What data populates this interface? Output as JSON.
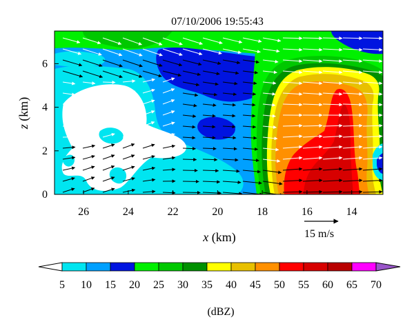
{
  "chart_data": {
    "type": "heatmap",
    "title": "07/10/2006 19:55:43",
    "xlabel_var": "x",
    "xlabel_unit": " (km)",
    "ylabel_var": "z",
    "ylabel_unit": " (km)",
    "x_range": [
      27.3,
      12.6
    ],
    "y_range": [
      0,
      7.5
    ],
    "x_ticks": [
      26,
      24,
      22,
      20,
      18,
      16,
      14
    ],
    "y_ticks": [
      0,
      2,
      4,
      6
    ],
    "reference_vector_label": "15 m/s",
    "reference_vector_ms": 15,
    "colorbar": {
      "unit_label": "(dBZ)",
      "ticks": [
        5,
        10,
        15,
        20,
        25,
        30,
        35,
        40,
        45,
        50,
        55,
        60,
        65,
        70
      ],
      "colors": [
        "#ffffff",
        "#00e5f0",
        "#00a0ff",
        "#0014e0",
        "#00f000",
        "#00c800",
        "#009000",
        "#ffff00",
        "#e8c000",
        "#ff9000",
        "#ff0000",
        "#d70000",
        "#b80000",
        "#ff00ff",
        "#9955c9"
      ]
    },
    "reflectivity_regions_dBZ": [
      {
        "level": 20,
        "x": [
          27.3,
          18.0
        ],
        "z": [
          6.8,
          7.5
        ]
      },
      {
        "level": 25,
        "x": [
          26.0,
          22.0
        ],
        "z": [
          6.3,
          7.5
        ]
      },
      {
        "level": 15,
        "x": [
          27.3,
          18.0
        ],
        "z": [
          3.0,
          7.0
        ]
      },
      {
        "level": 10,
        "x": [
          27.3,
          21.0
        ],
        "z": [
          0.5,
          6.0
        ]
      },
      {
        "level": 5,
        "x": [
          27.0,
          22.0
        ],
        "z": [
          0.8,
          4.8
        ]
      },
      {
        "level": 20,
        "x": [
          18.5,
          17.3
        ],
        "z": [
          0,
          7.5
        ]
      },
      {
        "level": 40,
        "x": [
          17.5,
          13.0
        ],
        "z": [
          0.2,
          6.0
        ]
      },
      {
        "level": 50,
        "x": [
          16.8,
          13.3
        ],
        "z": [
          0.5,
          5.0
        ]
      },
      {
        "level": 55,
        "x": [
          16.0,
          14.0
        ],
        "z": [
          0.2,
          3.0
        ]
      }
    ]
  }
}
